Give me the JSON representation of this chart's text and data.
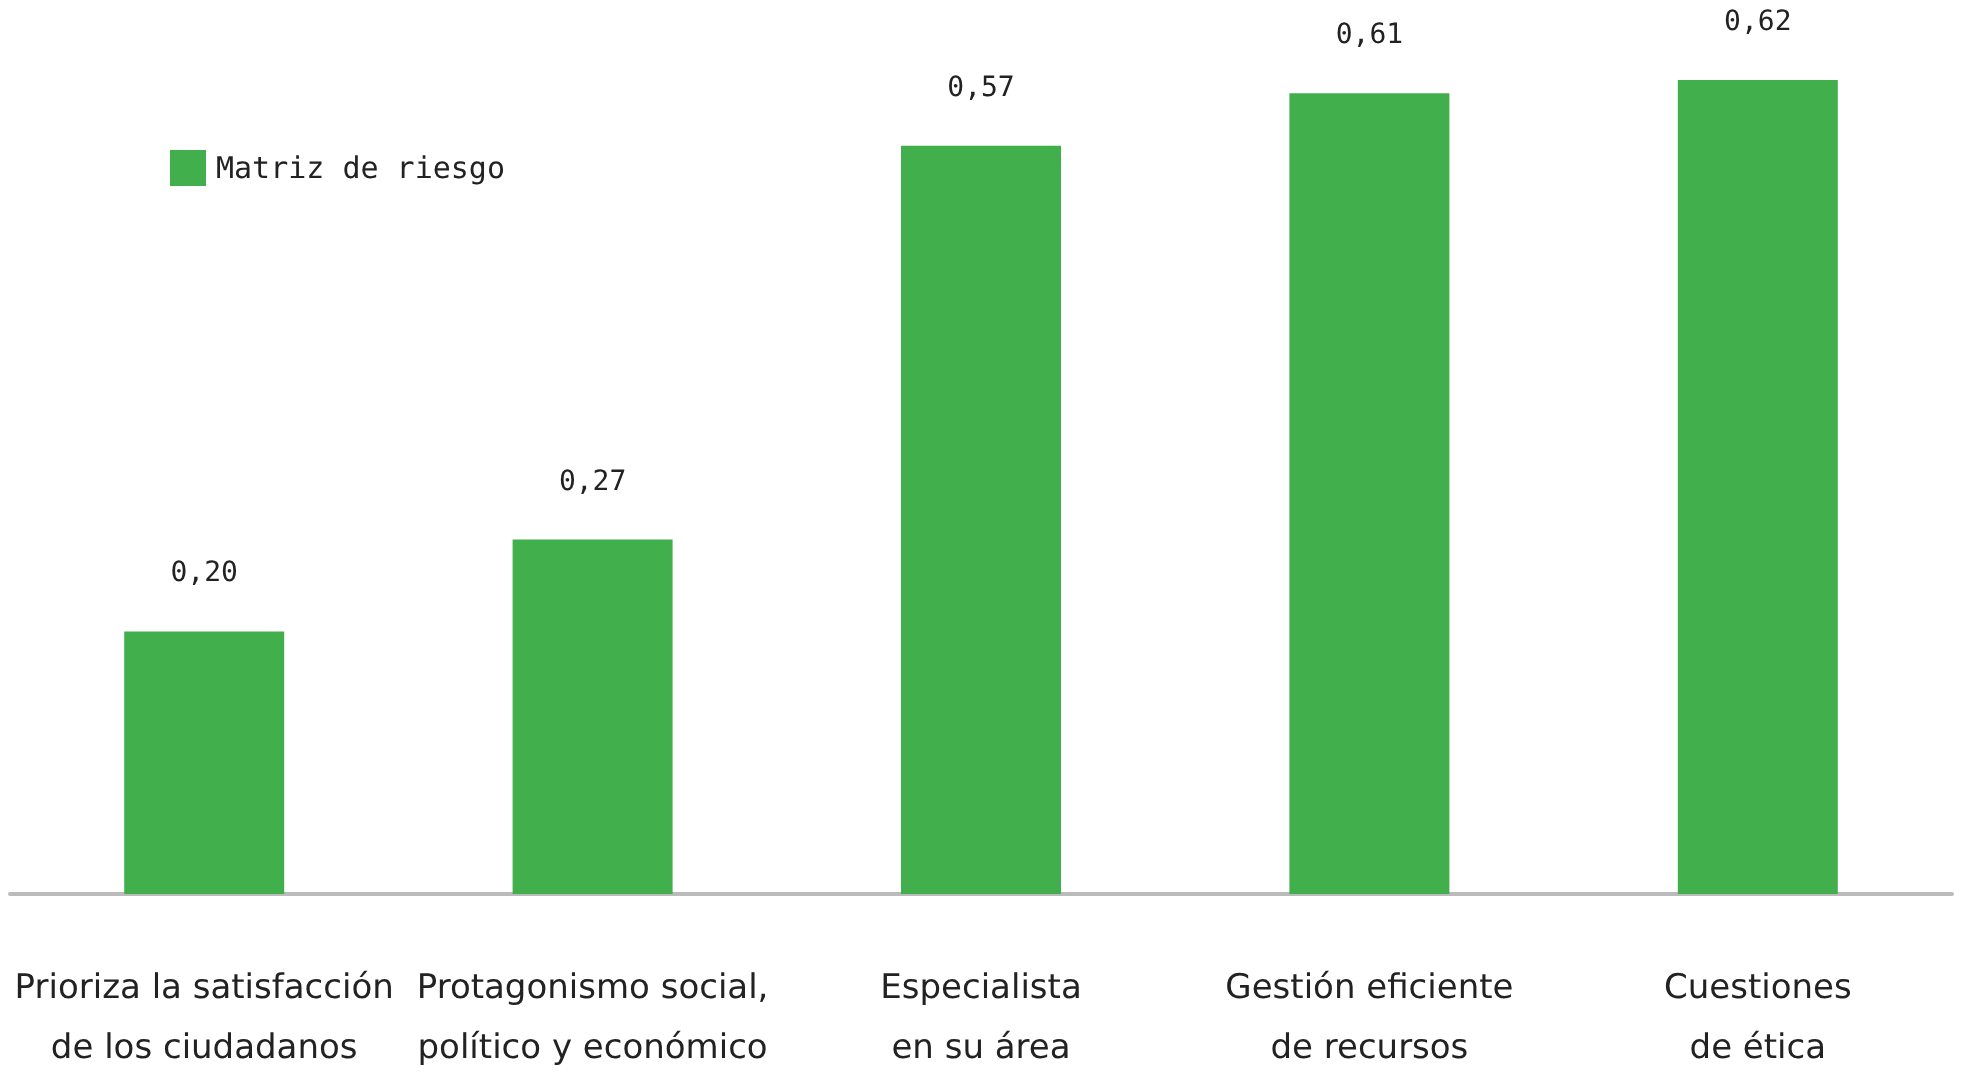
{
  "chart_data": {
    "type": "bar",
    "categories": [
      "Prioriza la satisfacción\nde los ciudadanos",
      "Protagonismo social,\npolítico y económico",
      "Especialista\nen su área",
      "Gestión eficiente\nde recursos",
      "Cuestiones\nde ética"
    ],
    "series": [
      {
        "name": "Matriz de riesgo",
        "color": "#41af4b",
        "values": [
          0.2,
          0.27,
          0.57,
          0.61,
          0.62
        ],
        "value_labels": [
          "0,20",
          "0,27",
          "0,57",
          "0,61",
          "0,62"
        ]
      }
    ],
    "ylim": [
      0,
      0.62
    ],
    "tick_labels": "x",
    "grid": false,
    "legend": "top left"
  }
}
